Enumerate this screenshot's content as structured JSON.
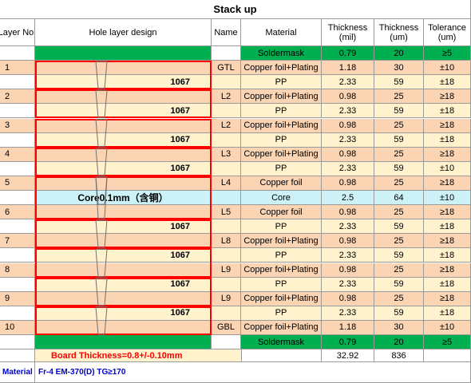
{
  "title": "Stack up",
  "headers": [
    "Layer No.",
    "Hole layer design",
    "Name",
    "Material",
    "Thickness\n(mil)",
    "Thickness\n(um)",
    "Tolerance\n(um)"
  ],
  "rows": [
    {
      "layer": "",
      "design": "",
      "name": "",
      "material": "Soldermask",
      "mil": "0.79",
      "um": "20",
      "tol": "≥5",
      "type": "green"
    },
    {
      "layer": "1",
      "design": "",
      "name": "GTL",
      "material": "Copper foil+Plating",
      "mil": "1.18",
      "um": "30",
      "tol": "±10",
      "type": "copper"
    },
    {
      "layer": "",
      "design": "1067",
      "name": "",
      "material": "PP",
      "mil": "2.33",
      "um": "59",
      "tol": "±18",
      "type": "pp"
    },
    {
      "layer": "2",
      "design": "",
      "name": "L2",
      "material": "Copper foil+Plating",
      "mil": "0.98",
      "um": "25",
      "tol": "≥18",
      "type": "copper"
    },
    {
      "layer": "",
      "design": "1067",
      "name": "",
      "material": "PP",
      "mil": "2.33",
      "um": "59",
      "tol": "±18",
      "type": "pp"
    },
    {
      "layer": "3",
      "design": "",
      "name": "L2",
      "material": "Copper foil+Plating",
      "mil": "0.98",
      "um": "25",
      "tol": "≥18",
      "type": "copper"
    },
    {
      "layer": "",
      "design": "1067",
      "name": "",
      "material": "PP",
      "mil": "2.33",
      "um": "59",
      "tol": "±18",
      "type": "pp"
    },
    {
      "layer": "4",
      "design": "",
      "name": "L3",
      "material": "Copper foil+Plating",
      "mil": "0.98",
      "um": "25",
      "tol": "≥18",
      "type": "copper"
    },
    {
      "layer": "",
      "design": "1067",
      "name": "",
      "material": "PP",
      "mil": "2.33",
      "um": "59",
      "tol": "±10",
      "type": "pp"
    },
    {
      "layer": "5",
      "design": "",
      "name": "L4",
      "material": "Copper foil",
      "mil": "0.98",
      "um": "25",
      "tol": "≥18",
      "type": "copper"
    },
    {
      "layer": "",
      "design": "Core0.1mm（含铜）",
      "name": "",
      "material": "Core",
      "mil": "2.5",
      "um": "64",
      "tol": "±10",
      "type": "core"
    },
    {
      "layer": "6",
      "design": "",
      "name": "L5",
      "material": "Copper foil",
      "mil": "0.98",
      "um": "25",
      "tol": "≥18",
      "type": "copper"
    },
    {
      "layer": "",
      "design": "1067",
      "name": "",
      "material": "PP",
      "mil": "2.33",
      "um": "59",
      "tol": "±18",
      "type": "pp"
    },
    {
      "layer": "7",
      "design": "",
      "name": "L8",
      "material": "Copper foil+Plating",
      "mil": "0.98",
      "um": "25",
      "tol": "≥18",
      "type": "copper"
    },
    {
      "layer": "",
      "design": "1067",
      "name": "",
      "material": "PP",
      "mil": "2.33",
      "um": "59",
      "tol": "±18",
      "type": "pp"
    },
    {
      "layer": "8",
      "design": "",
      "name": "L9",
      "material": "Copper foil+Plating",
      "mil": "0.98",
      "um": "25",
      "tol": "≥18",
      "type": "copper"
    },
    {
      "layer": "",
      "design": "1067",
      "name": "",
      "material": "PP",
      "mil": "2.33",
      "um": "59",
      "tol": "±18",
      "type": "pp"
    },
    {
      "layer": "9",
      "design": "",
      "name": "L9",
      "material": "Copper foil+Plating",
      "mil": "0.98",
      "um": "25",
      "tol": "≥18",
      "type": "copper"
    },
    {
      "layer": "",
      "design": "1067",
      "name": "",
      "material": "PP",
      "mil": "2.33",
      "um": "59",
      "tol": "±18",
      "type": "pp"
    },
    {
      "layer": "10",
      "design": "",
      "name": "GBL",
      "material": "Copper foil+Plating",
      "mil": "1.18",
      "um": "30",
      "tol": "±10",
      "type": "copper"
    },
    {
      "layer": "",
      "design": "",
      "name": "",
      "material": "Soldermask",
      "mil": "0.79",
      "um": "20",
      "tol": "≥5",
      "type": "green"
    }
  ],
  "board_thickness": "Board Thickness=0.8+/-0.10mm",
  "total_mil": "32.92",
  "total_um": "836",
  "footer_label": "Material",
  "footer_text": "Fr-4 EM-370(D)  TG≥170"
}
